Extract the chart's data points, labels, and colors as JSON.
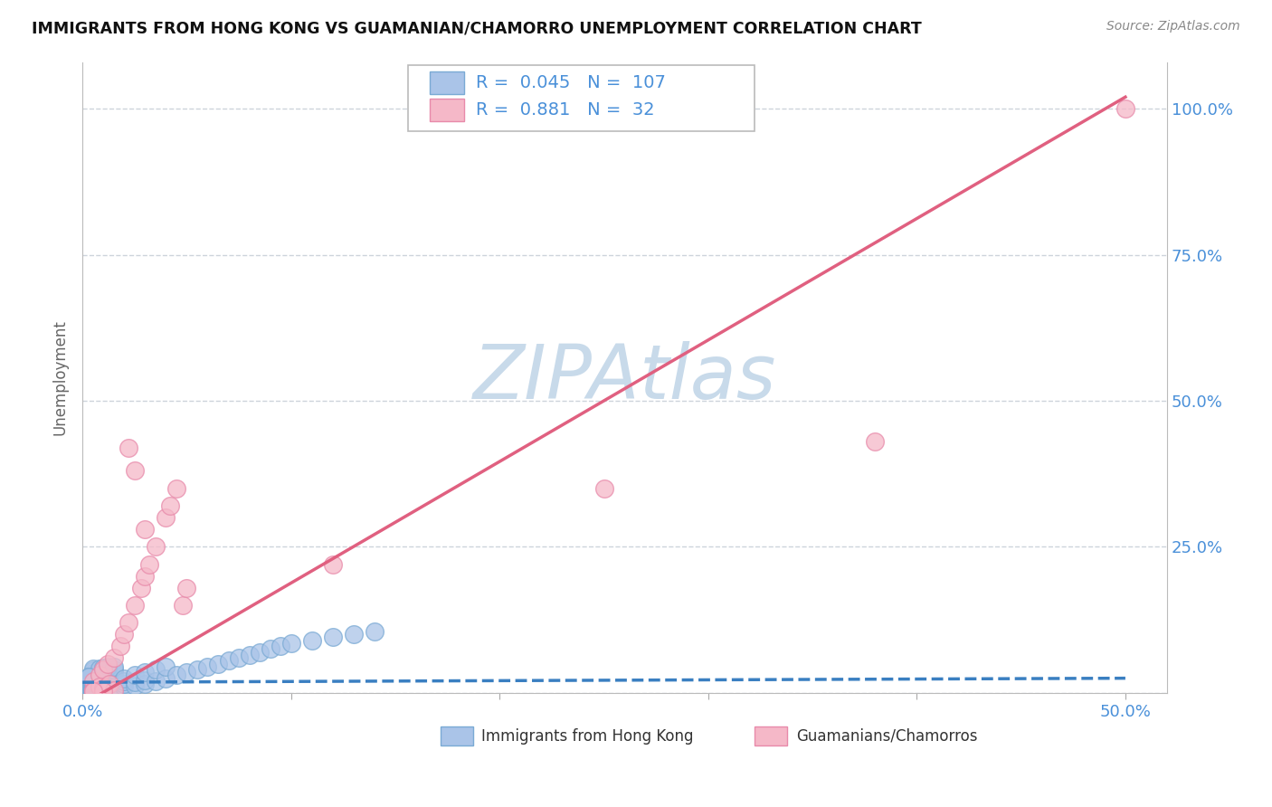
{
  "title": "IMMIGRANTS FROM HONG KONG VS GUAMANIAN/CHAMORRO UNEMPLOYMENT CORRELATION CHART",
  "source": "Source: ZipAtlas.com",
  "ylabel": "Unemployment",
  "xlim": [
    0.0,
    0.52
  ],
  "ylim": [
    0.0,
    1.08
  ],
  "series1_label": "Immigrants from Hong Kong",
  "series1_R": "0.045",
  "series1_N": "107",
  "series1_color": "#aac4e8",
  "series1_edge": "#7aaad4",
  "series1_trend_color": "#3a7fc1",
  "series2_label": "Guamanians/Chamorros",
  "series2_R": "0.881",
  "series2_N": "32",
  "series2_color": "#f5b8c8",
  "series2_edge": "#e88aaa",
  "series2_trend_color": "#e06080",
  "legend_text_color": "#4a90d9",
  "watermark": "ZIPAtlas",
  "watermark_color": "#c8daea",
  "bg_color": "#ffffff",
  "grid_color": "#c8d0d8",
  "series1_x": [
    0.005,
    0.008,
    0.01,
    0.012,
    0.015,
    0.005,
    0.008,
    0.01,
    0.012,
    0.015,
    0.005,
    0.008,
    0.01,
    0.012,
    0.015,
    0.005,
    0.008,
    0.01,
    0.012,
    0.015,
    0.005,
    0.008,
    0.01,
    0.012,
    0.015,
    0.005,
    0.008,
    0.01,
    0.012,
    0.015,
    0.005,
    0.008,
    0.01,
    0.012,
    0.015,
    0.005,
    0.008,
    0.01,
    0.012,
    0.015,
    0.005,
    0.008,
    0.01,
    0.012,
    0.015,
    0.005,
    0.008,
    0.01,
    0.012,
    0.015,
    0.02,
    0.02,
    0.02,
    0.02,
    0.025,
    0.025,
    0.025,
    0.03,
    0.03,
    0.03,
    0.035,
    0.035,
    0.04,
    0.04,
    0.045,
    0.05,
    0.055,
    0.06,
    0.065,
    0.07,
    0.075,
    0.08,
    0.085,
    0.09,
    0.095,
    0.1,
    0.11,
    0.12,
    0.13,
    0.14,
    0.003,
    0.003,
    0.003,
    0.003,
    0.003,
    0.003,
    0.003,
    0.003,
    0.003,
    0.003,
    0.003,
    0.003,
    0.003,
    0.003,
    0.003,
    0.003,
    0.003,
    0.003,
    0.003,
    0.003,
    0.003,
    0.003,
    0.003,
    0.003,
    0.003,
    0.003,
    0.003
  ],
  "series1_y": [
    0.005,
    0.01,
    0.015,
    0.005,
    0.01,
    0.02,
    0.008,
    0.012,
    0.006,
    0.018,
    0.007,
    0.013,
    0.009,
    0.014,
    0.011,
    0.016,
    0.004,
    0.017,
    0.003,
    0.019,
    0.022,
    0.025,
    0.023,
    0.021,
    0.027,
    0.028,
    0.024,
    0.026,
    0.029,
    0.031,
    0.033,
    0.03,
    0.032,
    0.034,
    0.035,
    0.038,
    0.036,
    0.037,
    0.039,
    0.04,
    0.041,
    0.042,
    0.043,
    0.044,
    0.045,
    0.002,
    0.003,
    0.001,
    0.004,
    0.002,
    0.01,
    0.015,
    0.02,
    0.025,
    0.012,
    0.018,
    0.03,
    0.015,
    0.022,
    0.035,
    0.02,
    0.04,
    0.025,
    0.045,
    0.03,
    0.035,
    0.04,
    0.045,
    0.05,
    0.055,
    0.06,
    0.065,
    0.07,
    0.075,
    0.08,
    0.085,
    0.09,
    0.095,
    0.1,
    0.105,
    0.002,
    0.003,
    0.004,
    0.005,
    0.006,
    0.007,
    0.008,
    0.009,
    0.01,
    0.011,
    0.012,
    0.013,
    0.014,
    0.015,
    0.016,
    0.017,
    0.018,
    0.019,
    0.02,
    0.021,
    0.022,
    0.023,
    0.024,
    0.025,
    0.026,
    0.027,
    0.028
  ],
  "series2_x": [
    0.005,
    0.008,
    0.01,
    0.012,
    0.015,
    0.018,
    0.02,
    0.022,
    0.025,
    0.028,
    0.03,
    0.032,
    0.035,
    0.04,
    0.042,
    0.045,
    0.048,
    0.05,
    0.022,
    0.025,
    0.03,
    0.005,
    0.008,
    0.01,
    0.013,
    0.25,
    0.38,
    0.5,
    0.12,
    0.015,
    0.01,
    0.005
  ],
  "series2_y": [
    0.02,
    0.03,
    0.04,
    0.05,
    0.06,
    0.08,
    0.1,
    0.12,
    0.15,
    0.18,
    0.2,
    0.22,
    0.25,
    0.3,
    0.32,
    0.35,
    0.15,
    0.18,
    0.42,
    0.38,
    0.28,
    0.005,
    0.01,
    0.008,
    0.015,
    0.35,
    0.43,
    1.0,
    0.22,
    0.005,
    0.003,
    0.002
  ]
}
